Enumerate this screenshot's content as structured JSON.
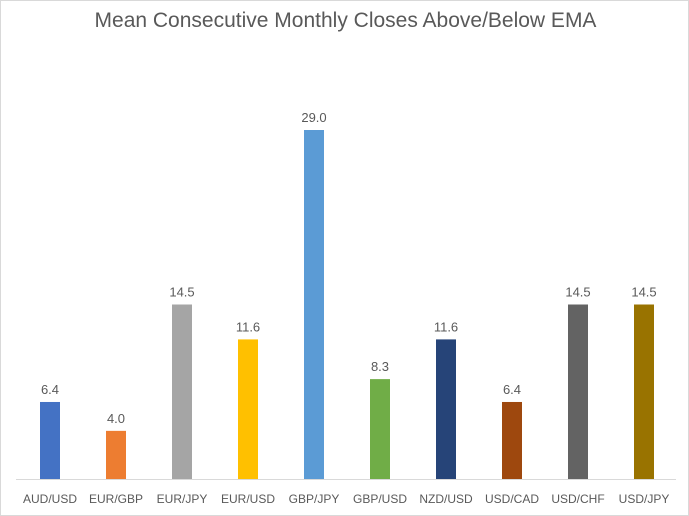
{
  "chart_data": {
    "type": "bar",
    "title": "Mean Consecutive Monthly Closes Above/Below EMA",
    "xlabel": "",
    "ylabel": "",
    "ylim": [
      0,
      30
    ],
    "grid": false,
    "legend": "none",
    "categories": [
      "AUD/USD",
      "EUR/GBP",
      "EUR/JPY",
      "EUR/USD",
      "GBP/JPY",
      "GBP/USD",
      "NZD/USD",
      "USD/CAD",
      "USD/CHF",
      "USD/JPY"
    ],
    "values": [
      6.4,
      4.0,
      14.5,
      11.6,
      29.0,
      8.3,
      11.6,
      6.4,
      14.5,
      14.5
    ],
    "value_labels": [
      "6.4",
      "4.0",
      "14.5",
      "11.6",
      "29.0",
      "8.3",
      "11.6",
      "6.4",
      "14.5",
      "14.5"
    ],
    "colors": [
      "#4472c4",
      "#ed7d31",
      "#a5a5a5",
      "#ffc000",
      "#5b9bd5",
      "#70ad47",
      "#264478",
      "#9e480e",
      "#636363",
      "#997300"
    ]
  }
}
